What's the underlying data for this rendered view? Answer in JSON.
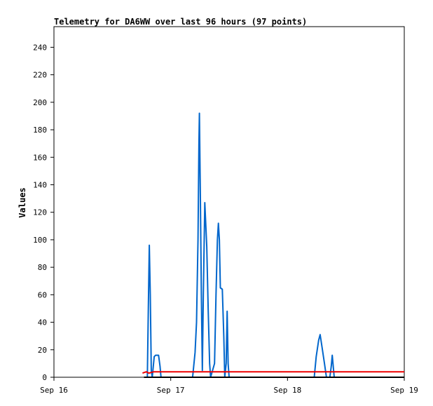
{
  "chart_data": {
    "type": "line",
    "title": "Telemetry for DA6WW over last 96 hours (97 points)",
    "xlabel": "",
    "ylabel": "Values",
    "xlim": [
      0,
      72
    ],
    "ylim": [
      0,
      255
    ],
    "x_ticks": [
      {
        "x": 0,
        "label": "Sep 16"
      },
      {
        "x": 24,
        "label": "Sep 17"
      },
      {
        "x": 48,
        "label": "Sep 18"
      },
      {
        "x": 72,
        "label": "Sep 19"
      }
    ],
    "y_ticks": [
      0,
      20,
      40,
      60,
      80,
      100,
      120,
      140,
      160,
      180,
      200,
      220,
      240
    ],
    "grid": false,
    "series": [
      {
        "color": "#0066cc",
        "points": [
          [
            19.2,
            0
          ],
          [
            19.4,
            50
          ],
          [
            19.6,
            96
          ],
          [
            19.8,
            60
          ],
          [
            20.0,
            5
          ],
          [
            20.2,
            0
          ],
          [
            20.6,
            15
          ],
          [
            20.9,
            16
          ],
          [
            21.5,
            16
          ],
          [
            21.8,
            8
          ],
          [
            22.0,
            0
          ],
          [
            28.5,
            0
          ],
          [
            29.0,
            18
          ],
          [
            29.3,
            40
          ],
          [
            29.6,
            100
          ],
          [
            29.8,
            170
          ],
          [
            29.9,
            192
          ],
          [
            30.1,
            130
          ],
          [
            30.3,
            60
          ],
          [
            30.5,
            5
          ],
          [
            30.7,
            60
          ],
          [
            31.0,
            127
          ],
          [
            31.4,
            95
          ],
          [
            31.7,
            50
          ],
          [
            32.0,
            10
          ],
          [
            32.2,
            0
          ],
          [
            33.0,
            10
          ],
          [
            33.3,
            60
          ],
          [
            33.6,
            100
          ],
          [
            33.8,
            112
          ],
          [
            34.0,
            100
          ],
          [
            34.2,
            65
          ],
          [
            34.6,
            64
          ],
          [
            34.9,
            30
          ],
          [
            35.1,
            0
          ],
          [
            35.4,
            10
          ],
          [
            35.6,
            48
          ],
          [
            35.8,
            10
          ],
          [
            36.0,
            0
          ],
          [
            53.5,
            0
          ],
          [
            53.9,
            15
          ],
          [
            54.4,
            27
          ],
          [
            54.7,
            31
          ],
          [
            55.1,
            22
          ],
          [
            55.6,
            10
          ],
          [
            56.0,
            0
          ],
          [
            56.7,
            0
          ],
          [
            57.0,
            8
          ],
          [
            57.2,
            16
          ],
          [
            57.4,
            8
          ],
          [
            57.6,
            0
          ]
        ]
      },
      {
        "color": "#ee0000",
        "points": [
          [
            18.2,
            3
          ],
          [
            19.0,
            4
          ],
          [
            19.5,
            3
          ],
          [
            20.5,
            4
          ],
          [
            72,
            4
          ]
        ]
      },
      {
        "color": "#000000",
        "points": [
          [
            18.5,
            0
          ],
          [
            72,
            0
          ]
        ]
      }
    ]
  }
}
